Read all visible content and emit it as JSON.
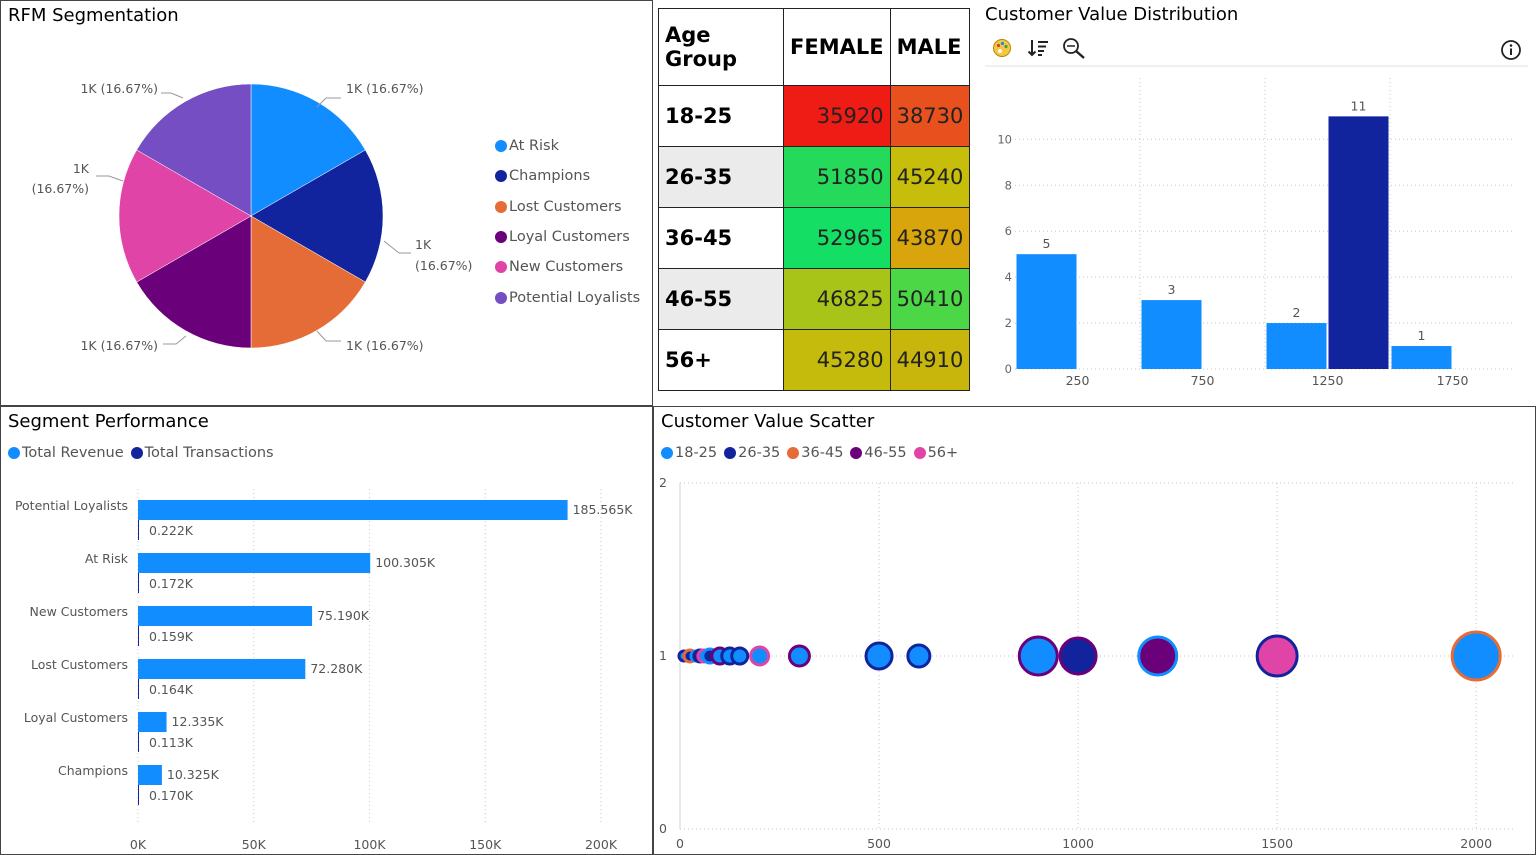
{
  "rfm": {
    "title": "RFM Segmentation",
    "legend": [
      "At Risk",
      "Champions",
      "Lost Customers",
      "Loyal Customers",
      "New Customers",
      "Potential Loyalists"
    ],
    "colors": [
      "#118DFF",
      "#12239E",
      "#E66C37",
      "#6B007B",
      "#E044A7",
      "#744EC2"
    ],
    "slice_labels": [
      "1K (16.67%)",
      "1K",
      "(16.67%)",
      "1K (16.67%)",
      "1K (16.67%)",
      "1K",
      "(16.67%)",
      "1K (16.67%)"
    ]
  },
  "matrix": {
    "headers": [
      "Age Group",
      "FEMALE",
      "MALE"
    ],
    "rows": [
      {
        "age": "18-25",
        "female": "35920",
        "male": "38730",
        "fcolor": "#EE1C14",
        "mcolor": "#E8511E"
      },
      {
        "age": "26-35",
        "female": "51850",
        "male": "45240",
        "fcolor": "#25D95A",
        "mcolor": "#C6BE0A"
      },
      {
        "age": "36-45",
        "female": "52965",
        "male": "43870",
        "fcolor": "#14DE64",
        "mcolor": "#D8A60C"
      },
      {
        "age": "46-55",
        "female": "46825",
        "male": "50410",
        "fcolor": "#A8C418",
        "mcolor": "#4CD846"
      },
      {
        "age": "56+",
        "female": "45280",
        "male": "44910",
        "fcolor": "#C5BB0C",
        "mcolor": "#C9B60C"
      }
    ]
  },
  "dist": {
    "title": "Customer Value Distribution",
    "icons": [
      "palette-icon",
      "sort-icon",
      "zoom-icon",
      "info-icon"
    ]
  },
  "seg": {
    "title": "Segment Performance",
    "legend": [
      "Total Revenue",
      "Total Transactions"
    ],
    "legend_colors": [
      "#118DFF",
      "#12239E"
    ]
  },
  "scatter": {
    "title": "Customer Value Scatter",
    "legend": [
      "18-25",
      "26-35",
      "36-45",
      "46-55",
      "56+"
    ],
    "legend_colors": [
      "#118DFF",
      "#12239E",
      "#E66C37",
      "#6B007B",
      "#E044A7"
    ]
  },
  "chart_data": [
    {
      "type": "pie",
      "title": "RFM Segmentation",
      "categories": [
        "At Risk",
        "Champions",
        "Lost Customers",
        "Loyal Customers",
        "New Customers",
        "Potential Loyalists"
      ],
      "values": [
        1000,
        1000,
        1000,
        1000,
        1000,
        1000
      ],
      "labels": [
        "1K (16.67%)",
        "1K (16.67%)",
        "1K (16.67%)",
        "1K (16.67%)",
        "1K (16.67%)",
        "1K (16.67%)"
      ],
      "legend": "right"
    },
    {
      "type": "bar",
      "title": "Customer Value Distribution",
      "categories": [
        "250",
        "750",
        "1250",
        "1750"
      ],
      "series": [
        {
          "values": [
            5,
            3,
            2,
            1
          ],
          "color": "#118DFF"
        },
        {
          "values": [
            0,
            0,
            11,
            0
          ],
          "color": "#12239E"
        }
      ],
      "data_labels": [
        "5",
        "3",
        "2",
        "11",
        "1"
      ],
      "yticks": [
        "0",
        "2",
        "4",
        "6",
        "8",
        "10"
      ],
      "ylim": [
        0,
        11.8
      ],
      "grid": true
    },
    {
      "type": "bar",
      "orientation": "horizontal",
      "title": "Segment Performance",
      "categories": [
        "Potential Loyalists",
        "At Risk",
        "New Customers",
        "Lost Customers",
        "Loyal Customers",
        "Champions"
      ],
      "series": [
        {
          "name": "Total Revenue",
          "values": [
            185565,
            100305,
            75190,
            72280,
            12335,
            10325
          ],
          "labels": [
            "185.565K",
            "100.305K",
            "75.190K",
            "72.280K",
            "12.335K",
            "10.325K"
          ]
        },
        {
          "name": "Total Transactions",
          "values": [
            222,
            172,
            159,
            164,
            113,
            170
          ],
          "labels": [
            "0.222K",
            "0.172K",
            "0.159K",
            "0.164K",
            "0.113K",
            "0.170K"
          ]
        }
      ],
      "xticks": [
        "0K",
        "50K",
        "100K",
        "150K",
        "200K"
      ],
      "xlim": [
        0,
        220000
      ],
      "legend": "top-left",
      "grid": true
    },
    {
      "type": "scatter",
      "title": "Customer Value Scatter",
      "series_names": [
        "18-25",
        "26-35",
        "36-45",
        "46-55",
        "56+"
      ],
      "points": [
        {
          "x": 10,
          "y": 1,
          "r": 5,
          "fill": "#118DFF",
          "stroke": "#12239E"
        },
        {
          "x": 25,
          "y": 1,
          "r": 6,
          "fill": "#12239E",
          "stroke": "#E66C37"
        },
        {
          "x": 40,
          "y": 1,
          "r": 5,
          "fill": "#E66C37",
          "stroke": "#118DFF"
        },
        {
          "x": 50,
          "y": 1,
          "r": 6,
          "fill": "#6B007B",
          "stroke": "#12239E"
        },
        {
          "x": 60,
          "y": 1,
          "r": 6,
          "fill": "#118DFF",
          "stroke": "#E044A7"
        },
        {
          "x": 75,
          "y": 1,
          "r": 7,
          "fill": "#12239E",
          "stroke": "#118DFF"
        },
        {
          "x": 100,
          "y": 1,
          "r": 8,
          "fill": "#118DFF",
          "stroke": "#6B007B"
        },
        {
          "x": 125,
          "y": 1,
          "r": 8,
          "fill": "#118DFF",
          "stroke": "#12239E"
        },
        {
          "x": 150,
          "y": 1,
          "r": 8,
          "fill": "#118DFF",
          "stroke": "#12239E"
        },
        {
          "x": 200,
          "y": 1,
          "r": 9,
          "fill": "#118DFF",
          "stroke": "#E044A7"
        },
        {
          "x": 300,
          "y": 1,
          "r": 10,
          "fill": "#118DFF",
          "stroke": "#6B007B"
        },
        {
          "x": 500,
          "y": 1,
          "r": 13,
          "fill": "#118DFF",
          "stroke": "#12239E"
        },
        {
          "x": 600,
          "y": 1,
          "r": 11,
          "fill": "#118DFF",
          "stroke": "#12239E"
        },
        {
          "x": 900,
          "y": 1,
          "r": 19,
          "fill": "#118DFF",
          "stroke": "#6B007B"
        },
        {
          "x": 1000,
          "y": 1,
          "r": 18,
          "fill": "#12239E",
          "stroke": "#6B007B"
        },
        {
          "x": 1200,
          "y": 1,
          "r": 19,
          "fill": "#6B007B",
          "stroke": "#118DFF"
        },
        {
          "x": 1500,
          "y": 1,
          "r": 20,
          "fill": "#E044A7",
          "stroke": "#12239E"
        },
        {
          "x": 2000,
          "y": 1,
          "r": 24,
          "fill": "#118DFF",
          "stroke": "#E66C37"
        }
      ],
      "xticks": [
        "0",
        "500",
        "1000",
        "1500",
        "2000"
      ],
      "yticks": [
        "0",
        "1",
        "2"
      ],
      "xlim": [
        0,
        2100
      ],
      "ylim": [
        0,
        2
      ],
      "legend": "top-left",
      "grid": true
    }
  ]
}
